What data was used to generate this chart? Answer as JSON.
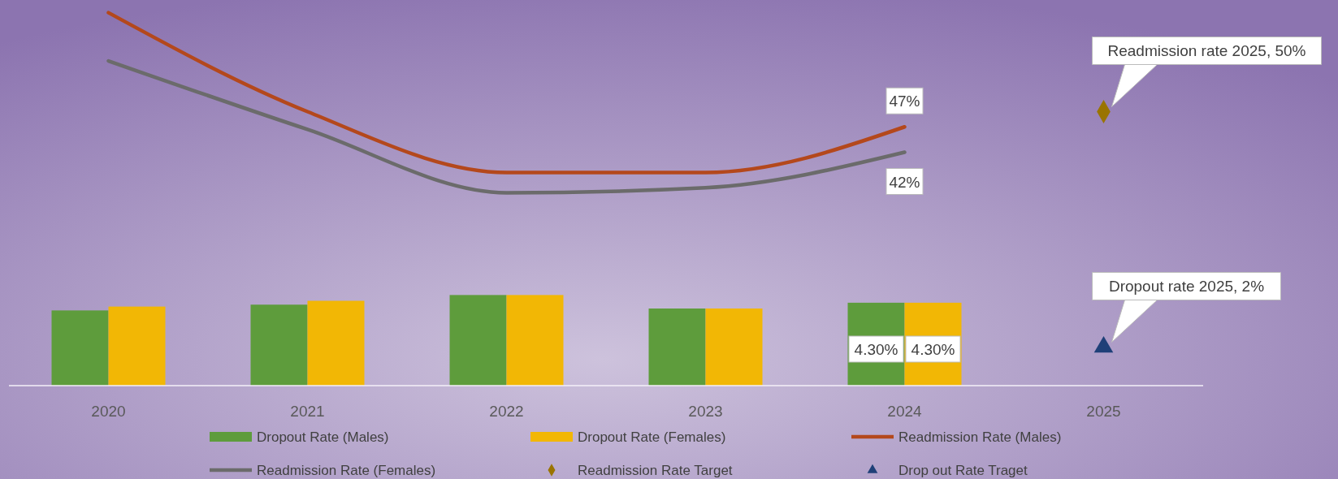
{
  "chart_data": {
    "type": "bar",
    "categories": [
      "2020",
      "2021",
      "2022",
      "2023",
      "2024",
      "2025"
    ],
    "series": [
      {
        "name": "Dropout Rate (Males)",
        "color": "#5e9c3c",
        "values": [
          3.9,
          4.2,
          4.7,
          4.0,
          4.3,
          null
        ],
        "value_labels": [
          null,
          null,
          null,
          null,
          "4.30%",
          null
        ]
      },
      {
        "name": "Dropout Rate (Females)",
        "color": "#f2b705",
        "values": [
          4.1,
          4.4,
          4.7,
          4.0,
          4.3,
          null
        ],
        "value_labels": [
          null,
          null,
          null,
          null,
          "4.30%",
          null
        ]
      },
      {
        "name": "Readmission Rate (Males)",
        "type": "line",
        "axis": "y2",
        "color": "#b4481c",
        "values": [
          69.5,
          50,
          38,
          38,
          47,
          null
        ],
        "value_labels": [
          null,
          null,
          null,
          null,
          "47%",
          null
        ]
      },
      {
        "name": "Readmission Rate (Females)",
        "type": "line",
        "axis": "y2",
        "color": "#6b6b6b",
        "values": [
          60,
          46.5,
          34,
          35,
          42,
          null
        ],
        "value_labels": [
          null,
          null,
          null,
          null,
          "42%",
          null
        ]
      },
      {
        "name": "Readmission Rate Target",
        "type": "scatter",
        "axis": "y2",
        "marker": "diamond",
        "color": "#9a7400",
        "values": [
          null,
          null,
          null,
          null,
          null,
          50
        ]
      },
      {
        "name": "Drop out Rate Traget",
        "type": "scatter",
        "marker": "triangle",
        "color": "#1f4078",
        "values": [
          null,
          null,
          null,
          null,
          null,
          2
        ]
      }
    ],
    "ylim": [
      0,
      20
    ],
    "y2lim": [
      -4,
      72
    ],
    "tick_labels": "x",
    "legend": "bottom",
    "annotations": [
      "Readmission rate 2025, 50%",
      "Dropout rate 2025, 2%"
    ]
  }
}
